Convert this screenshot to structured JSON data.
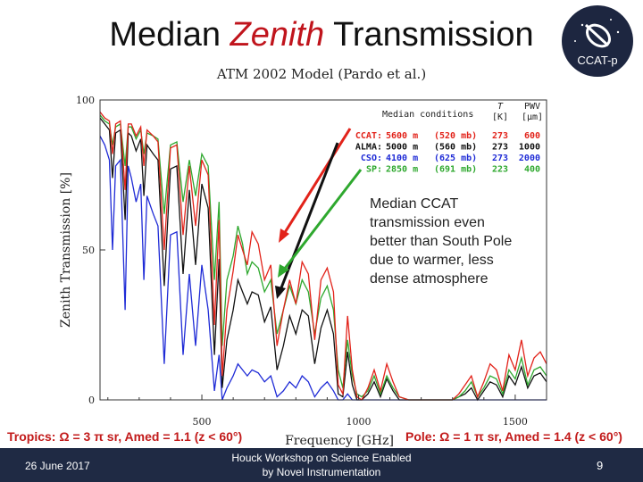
{
  "slide": {
    "title_part1": "Median ",
    "title_emph": "Zenith",
    "title_part2": " Transmission",
    "logo_label": "CCAT-p",
    "date": "26 June 2017",
    "workshop_line1": "Houck Workshop on Science Enabled",
    "workshop_line2": "by Novel Instrumentation",
    "page_number": "9",
    "tropics_note": "Tropics: Ω = 3 π sr, Amed = 1.1 (z < 60°)",
    "pole_note": "Pole: Ω = 1 π sr, Amed = 1.4 (z < 60°)",
    "annotation": [
      "Median CCAT",
      "transmission even",
      "better than South Pole",
      "due to warmer, less",
      "dense atmosphere"
    ]
  },
  "chart_data": {
    "type": "line",
    "title": "ATM 2002 Model (Pardo et al.)",
    "xlabel": "Frequency [GHz]",
    "ylabel": "Zenith Transmission [%]",
    "xlim": [
      175,
      1600
    ],
    "ylim": [
      0,
      100
    ],
    "x_ticks": [
      500,
      1000,
      1500
    ],
    "y_ticks": [
      0,
      50,
      100
    ],
    "grid": false,
    "legend": {
      "position": "top-right",
      "header": "Median conditions",
      "col_headers": [
        "T",
        "PWV"
      ],
      "col_units": [
        "[K]",
        "[μm]"
      ],
      "rows": [
        {
          "site": "CCAT:",
          "alt": "5600 m",
          "pressure": "(520 mb)",
          "T": "273",
          "PWV": "600",
          "color": "#e2231a"
        },
        {
          "site": "ALMA:",
          "alt": "5000 m",
          "pressure": "(560 mb)",
          "T": "273",
          "PWV": "1000",
          "color": "#111111"
        },
        {
          "site": "CSO:",
          "alt": "4100 m",
          "pressure": "(625 mb)",
          "T": "273",
          "PWV": "2000",
          "color": "#1f2bd6"
        },
        {
          "site": "SP:",
          "alt": "2850 m",
          "pressure": "(691 mb)",
          "T": "223",
          "PWV": "400",
          "color": "#2ea82e"
        }
      ]
    },
    "series": [
      {
        "name": "CCAT",
        "color": "#e2231a",
        "x": [
          175,
          190,
          205,
          215,
          225,
          240,
          255,
          265,
          275,
          290,
          305,
          315,
          325,
          345,
          360,
          380,
          400,
          420,
          440,
          460,
          480,
          500,
          520,
          540,
          555,
          565,
          580,
          600,
          615,
          630,
          645,
          660,
          680,
          700,
          720,
          740,
          760,
          780,
          800,
          820,
          840,
          860,
          880,
          900,
          920,
          935,
          950,
          965,
          980,
          995,
          1010,
          1030,
          1050,
          1070,
          1090,
          1110,
          1130,
          1160,
          1200,
          1250,
          1300,
          1320,
          1340,
          1360,
          1380,
          1400,
          1420,
          1440,
          1460,
          1480,
          1500,
          1520,
          1540,
          1560,
          1580,
          1600
        ],
        "y": [
          96,
          94,
          93,
          82,
          92,
          93,
          70,
          92,
          92,
          88,
          91,
          78,
          90,
          88,
          86,
          50,
          84,
          85,
          55,
          78,
          58,
          80,
          75,
          25,
          60,
          8,
          30,
          43,
          55,
          50,
          45,
          56,
          52,
          40,
          45,
          18,
          30,
          40,
          32,
          46,
          42,
          20,
          40,
          44,
          36,
          5,
          2,
          28,
          10,
          1,
          0,
          4,
          10,
          3,
          12,
          6,
          1,
          0,
          0,
          0,
          0,
          2,
          5,
          8,
          1,
          6,
          12,
          10,
          3,
          15,
          10,
          20,
          8,
          14,
          16,
          12
        ]
      },
      {
        "name": "ALMA",
        "color": "#111111",
        "x": [
          175,
          190,
          205,
          215,
          225,
          240,
          255,
          265,
          275,
          290,
          305,
          315,
          325,
          345,
          360,
          380,
          400,
          420,
          440,
          460,
          480,
          500,
          520,
          540,
          555,
          565,
          580,
          600,
          615,
          630,
          645,
          660,
          680,
          700,
          720,
          740,
          760,
          780,
          800,
          820,
          840,
          860,
          880,
          900,
          920,
          935,
          950,
          965,
          980,
          995,
          1010,
          1030,
          1050,
          1070,
          1090,
          1110,
          1130,
          1160,
          1200,
          1250,
          1300,
          1320,
          1340,
          1360,
          1380,
          1400,
          1420,
          1440,
          1460,
          1480,
          1500,
          1520,
          1540,
          1560,
          1580,
          1600
        ],
        "y": [
          94,
          92,
          90,
          74,
          89,
          90,
          60,
          89,
          88,
          83,
          87,
          68,
          85,
          82,
          80,
          38,
          77,
          78,
          42,
          70,
          45,
          72,
          64,
          15,
          47,
          4,
          20,
          30,
          40,
          36,
          32,
          36,
          35,
          26,
          31,
          10,
          18,
          28,
          22,
          30,
          28,
          12,
          24,
          30,
          22,
          2,
          1,
          16,
          5,
          0,
          0,
          2,
          6,
          1,
          7,
          3,
          0,
          0,
          0,
          0,
          0,
          1,
          2,
          4,
          0,
          3,
          6,
          5,
          1,
          8,
          5,
          11,
          4,
          8,
          9,
          6
        ]
      },
      {
        "name": "CSO",
        "color": "#1f2bd6",
        "x": [
          175,
          190,
          205,
          215,
          225,
          240,
          255,
          265,
          275,
          290,
          305,
          315,
          325,
          345,
          360,
          380,
          400,
          420,
          440,
          460,
          480,
          500,
          520,
          540,
          555,
          565,
          580,
          600,
          615,
          630,
          645,
          660,
          680,
          700,
          720,
          740,
          760,
          780,
          800,
          820,
          840,
          860,
          880,
          900,
          920,
          935,
          950,
          965,
          980,
          995,
          1010,
          1030,
          1050,
          1070,
          1090,
          1110,
          1130,
          1160,
          1200,
          1250,
          1300,
          1320,
          1340,
          1360,
          1380,
          1400,
          1420,
          1440,
          1460,
          1480,
          1500,
          1520,
          1540,
          1560,
          1580,
          1600
        ],
        "y": [
          88,
          85,
          80,
          50,
          78,
          80,
          30,
          78,
          74,
          66,
          72,
          40,
          68,
          62,
          58,
          12,
          55,
          56,
          15,
          42,
          18,
          45,
          30,
          3,
          15,
          0,
          4,
          8,
          12,
          10,
          8,
          10,
          9,
          6,
          8,
          1,
          3,
          6,
          4,
          8,
          6,
          1,
          4,
          6,
          3,
          0,
          0,
          2,
          0,
          0,
          0,
          0,
          0,
          0,
          0,
          0,
          0,
          0,
          0,
          0,
          0,
          0,
          0,
          0,
          0,
          0,
          0,
          0,
          0,
          0,
          0,
          0,
          0,
          0,
          0,
          0
        ]
      },
      {
        "name": "SP",
        "color": "#2ea82e",
        "x": [
          175,
          190,
          205,
          215,
          225,
          240,
          255,
          265,
          275,
          290,
          305,
          315,
          325,
          345,
          360,
          380,
          400,
          420,
          440,
          460,
          480,
          500,
          520,
          540,
          555,
          565,
          580,
          600,
          615,
          630,
          645,
          660,
          680,
          700,
          720,
          740,
          760,
          780,
          800,
          820,
          840,
          860,
          880,
          900,
          920,
          935,
          950,
          965,
          980,
          995,
          1010,
          1030,
          1050,
          1070,
          1090,
          1110,
          1130,
          1160,
          1200,
          1250,
          1300,
          1320,
          1340,
          1360,
          1380,
          1400,
          1420,
          1440,
          1460,
          1480,
          1500,
          1520,
          1540,
          1560,
          1580,
          1600
        ],
        "y": [
          95,
          93,
          92,
          85,
          91,
          92,
          78,
          91,
          91,
          87,
          90,
          82,
          89,
          88,
          87,
          62,
          85,
          86,
          66,
          80,
          68,
          82,
          78,
          40,
          66,
          18,
          40,
          48,
          58,
          52,
          42,
          46,
          44,
          36,
          40,
          22,
          30,
          38,
          32,
          40,
          36,
          22,
          34,
          38,
          30,
          10,
          4,
          20,
          8,
          2,
          1,
          3,
          8,
          2,
          8,
          4,
          1,
          0,
          0,
          0,
          0,
          1,
          3,
          6,
          1,
          4,
          8,
          7,
          2,
          10,
          7,
          14,
          5,
          10,
          11,
          8
        ]
      }
    ]
  }
}
